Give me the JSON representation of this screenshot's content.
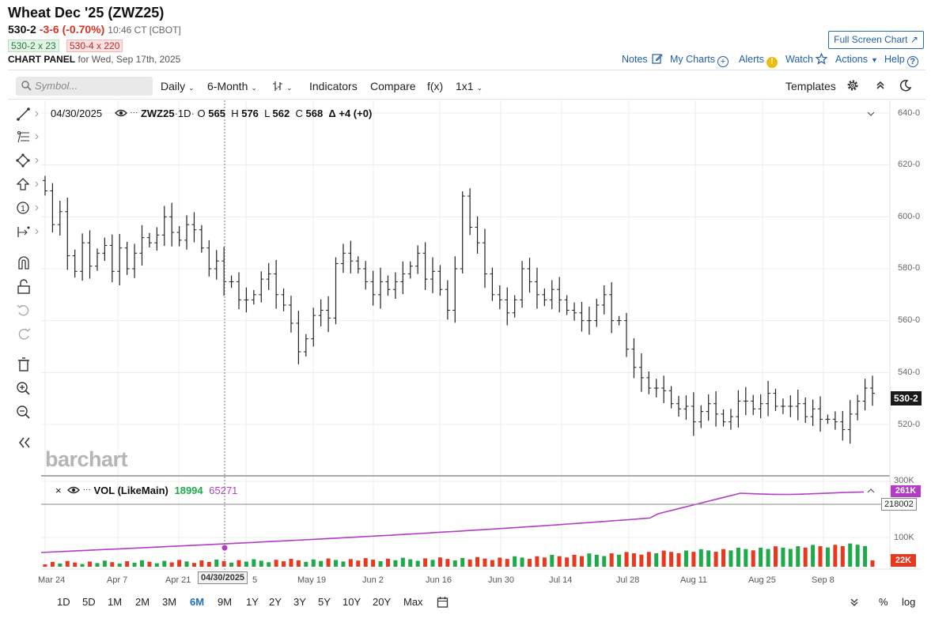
{
  "header": {
    "title": "Wheat Dec '25 (ZWZ25)",
    "last": "530-2",
    "change": "-3-6 (-0.70%)",
    "time": "10:46 CT [CBOT]",
    "bid": "530-2 x 23",
    "ask": "530-4 x 220",
    "panel_label": "CHART PANEL",
    "panel_date": "for Wed, Sep 17th, 2025",
    "full_screen": "Full Screen Chart ↗"
  },
  "links": {
    "notes": "Notes",
    "my_charts": "My Charts",
    "alerts": "Alerts",
    "watch": "Watch",
    "actions": "Actions",
    "help": "Help"
  },
  "toolbar": {
    "search_placeholder": "Symbol...",
    "interval": "Daily",
    "range": "6-Month",
    "indicators": "Indicators",
    "compare": "Compare",
    "fx": "f(x)",
    "layout": "1x1",
    "templates": "Templates"
  },
  "legend": {
    "date": "04/30/2025",
    "symbol": "ZWZ25",
    "period": "1D",
    "o_label": "O",
    "o_val": "565",
    "h_label": "H",
    "h_val": "576",
    "l_label": "L",
    "l_val": "562",
    "c_label": "C",
    "c_val": "568",
    "delta": "Δ +4 (+0)"
  },
  "volume_legend": {
    "label": "VOL (LikeMain)",
    "vol": "18994",
    "avg": "65271",
    "purple_tag": "261K",
    "box_tag": "218002",
    "red_tag": "22K"
  },
  "watermark": "barchart",
  "price_tag": "530-2",
  "crosshair_date": "04/30/2025",
  "y_ticks": [
    "640-0",
    "620-0",
    "600-0",
    "580-0",
    "560-0",
    "540-0",
    "520-0"
  ],
  "vol_ticks": [
    "300K",
    "100K"
  ],
  "x_ticks": [
    "Mar 24",
    "Apr 7",
    "Apr 21",
    "5",
    "May 19",
    "Jun 2",
    "Jun 16",
    "Jun 30",
    "Jul 14",
    "Jul 28",
    "Aug 11",
    "Aug 25",
    "Sep 8"
  ],
  "periods": [
    "1D",
    "5D",
    "1M",
    "2M",
    "3M",
    "6M",
    "9M",
    "1Y",
    "2Y",
    "3Y",
    "5Y",
    "10Y",
    "20Y",
    "Max"
  ],
  "active_period": "6M",
  "bottom_right": {
    "percent": "%",
    "log": "log"
  },
  "colors": {
    "up": "#1faa4a",
    "down": "#e8391e",
    "avg_line": "#b23cc4",
    "link": "#1f5fa8"
  },
  "chart_data": {
    "type": "ohlc",
    "title": "Wheat Dec '25 (ZWZ25)",
    "ylim": [
      510,
      645
    ],
    "close": [
      610,
      597,
      602,
      585,
      579,
      590,
      581,
      586,
      589,
      579,
      588,
      580,
      586,
      592,
      590,
      593,
      600,
      594,
      591,
      597,
      595,
      588,
      580,
      583,
      575,
      575,
      568,
      568,
      570,
      576,
      578,
      570,
      566,
      559,
      548,
      553,
      562,
      564,
      561,
      582,
      586,
      583,
      580,
      575,
      570,
      575,
      572,
      575,
      578,
      581,
      586,
      576,
      579,
      572,
      564,
      580,
      608,
      596,
      590,
      578,
      570,
      568,
      563,
      568,
      580,
      575,
      570,
      568,
      572,
      568,
      564,
      563,
      560,
      560,
      566,
      570,
      560,
      560,
      549,
      542,
      538,
      534,
      534,
      533,
      528,
      526,
      527,
      521,
      525,
      528,
      524,
      521,
      523,
      529,
      529,
      526,
      528,
      532,
      527,
      527,
      527,
      528,
      523,
      526,
      522,
      522,
      521,
      518,
      524,
      529,
      534,
      532
    ]
  }
}
